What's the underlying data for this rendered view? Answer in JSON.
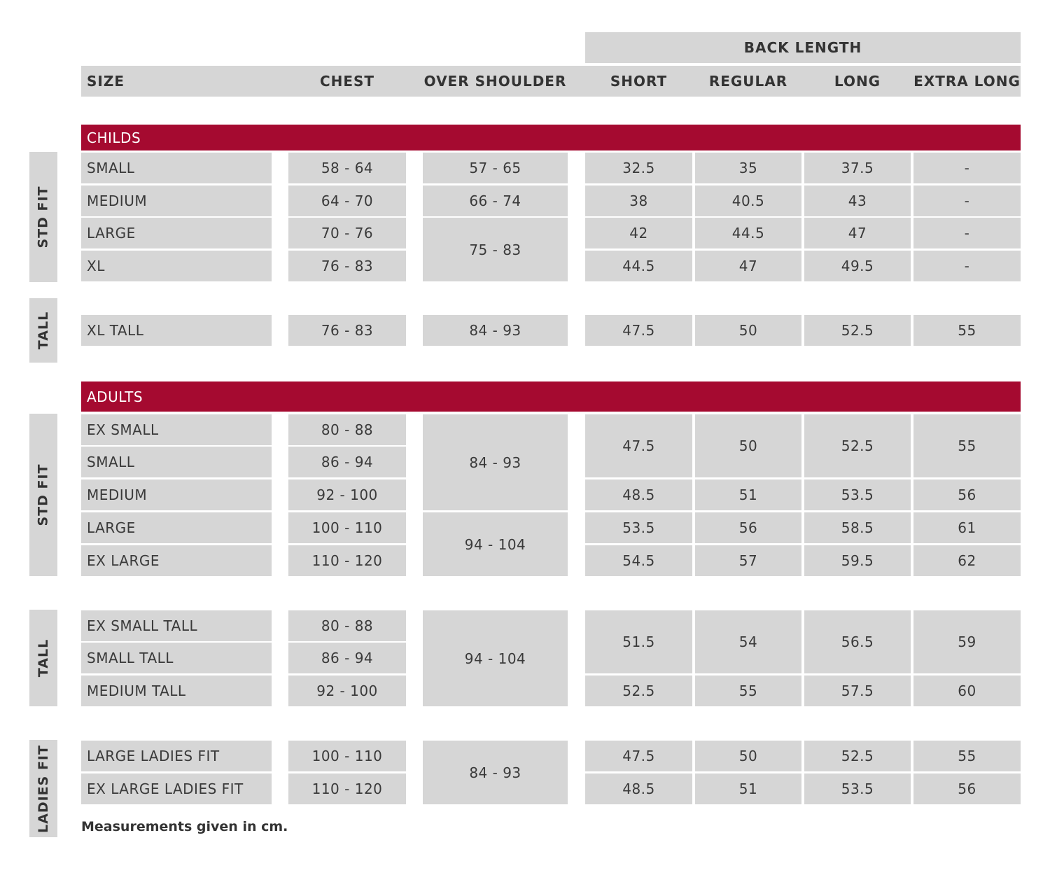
{
  "header": {
    "back_length": "BACK LENGTH",
    "columns": [
      "SIZE",
      "CHEST",
      "OVER SHOULDER",
      "SHORT",
      "REGULAR",
      "LONG",
      "EXTRA LONG"
    ]
  },
  "colors": {
    "section_bar": "#a50a30",
    "cell_bg": "#d6d6d6",
    "text": "#333333"
  },
  "sections": [
    {
      "title": "CHILDS",
      "groups": [
        {
          "label": "STD FIT",
          "rows": [
            [
              "SMALL",
              "58 - 64",
              "57 - 65",
              "32.5",
              "35",
              "37.5",
              "-"
            ],
            [
              "MEDIUM",
              "64 - 70",
              "66 - 74",
              "38",
              "40.5",
              "43",
              "-"
            ],
            [
              "LARGE",
              "70 - 76",
              {
                "v": "75 - 83",
                "rowspan": 2
              },
              "42",
              "44.5",
              "47",
              "-"
            ],
            [
              "XL",
              "76 - 83",
              null,
              "44.5",
              "47",
              "49.5",
              "-"
            ]
          ]
        },
        {
          "label": "TALL",
          "rows": [
            [
              "XL TALL",
              "76 - 83",
              "84 - 93",
              "47.5",
              "50",
              "52.5",
              "55"
            ]
          ]
        }
      ]
    },
    {
      "title": "ADULTS",
      "groups": [
        {
          "label": "STD FIT",
          "rows": [
            [
              "EX SMALL",
              "80 - 88",
              {
                "v": "84 - 93",
                "rowspan": 3
              },
              {
                "v": "47.5",
                "rowspan": 2
              },
              {
                "v": "50",
                "rowspan": 2
              },
              {
                "v": "52.5",
                "rowspan": 2
              },
              {
                "v": "55",
                "rowspan": 2
              }
            ],
            [
              "SMALL",
              "86 - 94",
              null,
              null,
              null,
              null,
              null
            ],
            [
              "MEDIUM",
              "92 - 100",
              null,
              "48.5",
              "51",
              "53.5",
              "56"
            ],
            [
              "LARGE",
              "100 - 110",
              {
                "v": "94 - 104",
                "rowspan": 2
              },
              "53.5",
              "56",
              "58.5",
              "61"
            ],
            [
              "EX LARGE",
              "110 - 120",
              null,
              "54.5",
              "57",
              "59.5",
              "62"
            ]
          ]
        },
        {
          "label": "TALL",
          "rows": [
            [
              "EX SMALL TALL",
              "80 - 88",
              {
                "v": "94 - 104",
                "rowspan": 3
              },
              {
                "v": "51.5",
                "rowspan": 2
              },
              {
                "v": "54",
                "rowspan": 2
              },
              {
                "v": "56.5",
                "rowspan": 2
              },
              {
                "v": "59",
                "rowspan": 2
              }
            ],
            [
              "SMALL TALL",
              "86 - 94",
              null,
              null,
              null,
              null,
              null
            ],
            [
              "MEDIUM TALL",
              "92 - 100",
              null,
              "52.5",
              "55",
              "57.5",
              "60"
            ]
          ]
        },
        {
          "label": "LADIES FIT",
          "rows": [
            [
              "LARGE LADIES FIT",
              "100 - 110",
              {
                "v": "84 - 93",
                "rowspan": 2
              },
              "47.5",
              "50",
              "52.5",
              "55"
            ],
            [
              "EX LARGE LADIES FIT",
              "110 - 120",
              null,
              "48.5",
              "51",
              "53.5",
              "56"
            ]
          ]
        }
      ]
    }
  ],
  "footnote": "Measurements given in cm."
}
